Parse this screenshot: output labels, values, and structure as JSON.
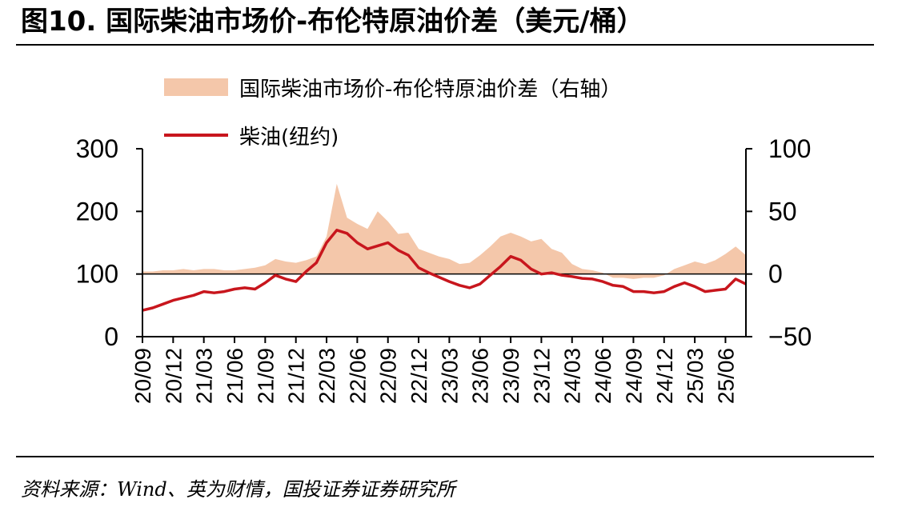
{
  "figure": {
    "title": "图10. 国际柴油市场价-布伦特原油价差（美元/桶）",
    "source": "资料来源：Wind、英为财情，国投证券证券研究所"
  },
  "legend": {
    "spread_label": "国际柴油市场价-布伦特原油价差（右轴）",
    "diesel_label": "柴油(纽约)"
  },
  "colors": {
    "spread": "#F4C7AA",
    "diesel": "#C8161D",
    "axis": "#000000"
  },
  "chart_data": {
    "type": "line",
    "x_tick_labels": [
      "20/09",
      "20/12",
      "21/03",
      "21/06",
      "21/09",
      "21/12",
      "22/03",
      "22/06",
      "22/09",
      "22/12",
      "23/03",
      "23/06",
      "23/09",
      "23/12",
      "24/03",
      "24/06",
      "24/09",
      "24/12",
      "25/03",
      "25/06"
    ],
    "x_range": [
      "2020-09",
      "2025-08"
    ],
    "y_left": {
      "ticks": [
        0,
        100,
        200,
        300
      ],
      "ylim": [
        0,
        300
      ]
    },
    "y_right": {
      "ticks": [
        -50,
        0,
        50,
        100
      ],
      "ylim": [
        -50,
        100
      ]
    },
    "grid": false,
    "legend_position": "top",
    "series": [
      {
        "name": "国际柴油市场价-布伦特原油价差（右轴）",
        "chart_type": "area",
        "axis": "right",
        "x": [
          "2020-09",
          "2020-10",
          "2020-11",
          "2020-12",
          "2021-01",
          "2021-02",
          "2021-03",
          "2021-04",
          "2021-05",
          "2021-06",
          "2021-07",
          "2021-08",
          "2021-09",
          "2021-10",
          "2021-11",
          "2021-12",
          "2022-01",
          "2022-02",
          "2022-03",
          "2022-04",
          "2022-05",
          "2022-06",
          "2022-07",
          "2022-08",
          "2022-09",
          "2022-10",
          "2022-11",
          "2022-12",
          "2023-01",
          "2023-02",
          "2023-03",
          "2023-04",
          "2023-05",
          "2023-06",
          "2023-07",
          "2023-08",
          "2023-09",
          "2023-10",
          "2023-11",
          "2023-12",
          "2024-01",
          "2024-02",
          "2024-03",
          "2024-04",
          "2024-05",
          "2024-06",
          "2024-07",
          "2024-08",
          "2024-09",
          "2024-10",
          "2024-11",
          "2024-12",
          "2025-01",
          "2025-02",
          "2025-03",
          "2025-04",
          "2025-05",
          "2025-06",
          "2025-07",
          "2025-08"
        ],
        "values": [
          2,
          2,
          3,
          3,
          4,
          3,
          4,
          4,
          3,
          3,
          4,
          5,
          7,
          12,
          10,
          9,
          11,
          14,
          30,
          72,
          45,
          40,
          36,
          50,
          42,
          32,
          33,
          20,
          17,
          14,
          12,
          8,
          9,
          15,
          22,
          30,
          33,
          30,
          26,
          28,
          20,
          17,
          8,
          4,
          3,
          1,
          -3,
          -3,
          -4,
          -3,
          -3,
          -1,
          4,
          7,
          10,
          8,
          11,
          16,
          22,
          15
        ]
      },
      {
        "name": "柴油(纽约)",
        "chart_type": "line",
        "axis": "left",
        "x": [
          "2020-09",
          "2020-10",
          "2020-11",
          "2020-12",
          "2021-01",
          "2021-02",
          "2021-03",
          "2021-04",
          "2021-05",
          "2021-06",
          "2021-07",
          "2021-08",
          "2021-09",
          "2021-10",
          "2021-11",
          "2021-12",
          "2022-01",
          "2022-02",
          "2022-03",
          "2022-04",
          "2022-05",
          "2022-06",
          "2022-07",
          "2022-08",
          "2022-09",
          "2022-10",
          "2022-11",
          "2022-12",
          "2023-01",
          "2023-02",
          "2023-03",
          "2023-04",
          "2023-05",
          "2023-06",
          "2023-07",
          "2023-08",
          "2023-09",
          "2023-10",
          "2023-11",
          "2023-12",
          "2024-01",
          "2024-02",
          "2024-03",
          "2024-04",
          "2024-05",
          "2024-06",
          "2024-07",
          "2024-08",
          "2024-09",
          "2024-10",
          "2024-11",
          "2024-12",
          "2025-01",
          "2025-02",
          "2025-03",
          "2025-04",
          "2025-05",
          "2025-06",
          "2025-07",
          "2025-08"
        ],
        "values": [
          42,
          46,
          52,
          58,
          62,
          66,
          72,
          70,
          72,
          76,
          78,
          76,
          86,
          98,
          92,
          88,
          104,
          118,
          150,
          170,
          165,
          150,
          140,
          145,
          150,
          138,
          130,
          110,
          102,
          95,
          88,
          82,
          78,
          84,
          98,
          112,
          128,
          122,
          108,
          100,
          102,
          98,
          96,
          93,
          92,
          88,
          82,
          80,
          72,
          72,
          70,
          72,
          80,
          86,
          80,
          72,
          74,
          76,
          92,
          84
        ]
      }
    ]
  }
}
